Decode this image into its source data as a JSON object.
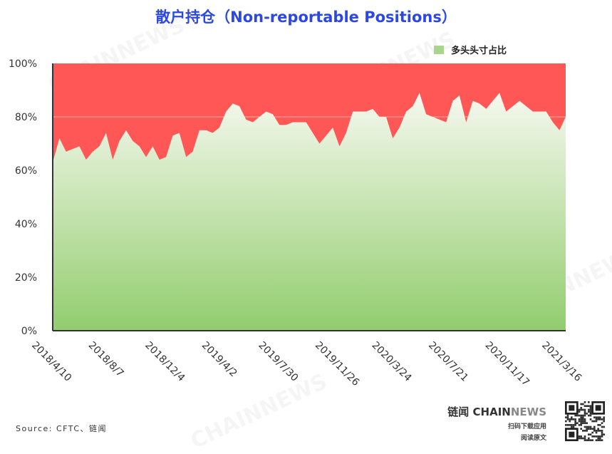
{
  "title": "散户持仓（Non-reportable Positions）",
  "legend": {
    "label": "多头头寸占比",
    "swatch_color": "#a9d58c"
  },
  "source": "Source: CFTC、链闻",
  "brand": {
    "name_cn": "链闻",
    "name_en_1": "CHAIN",
    "name_en_2": "NEWS",
    "line2": "扫码下载应用",
    "line3": "阅读原文",
    "watermark": "CHAINNEWS"
  },
  "colors": {
    "title": "#2b47e4",
    "short_area": "#ff5656",
    "long_area_top": "#f6f8ef",
    "long_area_bottom": "#92cd6e"
  },
  "chart_data": {
    "type": "area",
    "stacked_percent": true,
    "title": "散户持仓（Non-reportable Positions）",
    "ylim": [
      0,
      100
    ],
    "y_ticks": [
      "0%",
      "20%",
      "40%",
      "60%",
      "80%",
      "100%"
    ],
    "x_ticks": [
      "2018/4/10",
      "2018/8/7",
      "2018/12/4",
      "2019/4/2",
      "2019/7/30",
      "2019/11/26",
      "2020/3/24",
      "2020/7/21",
      "2020/11/17",
      "2021/3/16"
    ],
    "grid": "horizontal at 80%",
    "legend_position": "top-right",
    "series": [
      {
        "name": "多头头寸占比",
        "color": "#a9d58c",
        "points": [
          [
            "2018/4/10",
            63
          ],
          [
            "2018/4/24",
            72
          ],
          [
            "2018/5/8",
            67
          ],
          [
            "2018/5/22",
            68
          ],
          [
            "2018/6/5",
            69
          ],
          [
            "2018/6/19",
            64
          ],
          [
            "2018/7/3",
            67
          ],
          [
            "2018/7/17",
            69
          ],
          [
            "2018/7/31",
            74
          ],
          [
            "2018/8/14",
            64
          ],
          [
            "2018/8/28",
            71
          ],
          [
            "2018/9/11",
            75
          ],
          [
            "2018/9/25",
            71
          ],
          [
            "2018/10/9",
            69
          ],
          [
            "2018/10/23",
            65
          ],
          [
            "2018/11/6",
            69
          ],
          [
            "2018/11/20",
            64
          ],
          [
            "2018/12/4",
            65
          ],
          [
            "2018/12/18",
            73
          ],
          [
            "2019/1/1",
            74
          ],
          [
            "2019/1/15",
            65
          ],
          [
            "2019/1/29",
            67
          ],
          [
            "2019/2/12",
            75
          ],
          [
            "2019/2/26",
            75
          ],
          [
            "2019/3/12",
            74
          ],
          [
            "2019/3/26",
            76
          ],
          [
            "2019/4/9",
            82
          ],
          [
            "2019/4/23",
            85
          ],
          [
            "2019/5/7",
            84
          ],
          [
            "2019/5/21",
            79
          ],
          [
            "2019/6/4",
            78
          ],
          [
            "2019/6/18",
            80
          ],
          [
            "2019/7/2",
            82
          ],
          [
            "2019/7/16",
            81
          ],
          [
            "2019/7/30",
            77
          ],
          [
            "2019/8/13",
            77
          ],
          [
            "2019/8/27",
            78
          ],
          [
            "2019/9/10",
            78
          ],
          [
            "2019/9/24",
            78
          ],
          [
            "2019/10/8",
            74
          ],
          [
            "2019/10/22",
            70
          ],
          [
            "2019/11/5",
            73
          ],
          [
            "2019/11/19",
            76
          ],
          [
            "2019/12/3",
            69
          ],
          [
            "2019/12/17",
            74
          ],
          [
            "2019/12/31",
            82
          ],
          [
            "2020/1/14",
            82
          ],
          [
            "2020/1/28",
            82
          ],
          [
            "2020/2/11",
            83
          ],
          [
            "2020/2/25",
            80
          ],
          [
            "2020/3/10",
            80
          ],
          [
            "2020/3/24",
            72
          ],
          [
            "2020/4/7",
            76
          ],
          [
            "2020/4/21",
            82
          ],
          [
            "2020/5/5",
            84
          ],
          [
            "2020/5/19",
            89
          ],
          [
            "2020/6/2",
            81
          ],
          [
            "2020/6/16",
            80
          ],
          [
            "2020/6/30",
            79
          ],
          [
            "2020/7/14",
            78
          ],
          [
            "2020/7/28",
            86
          ],
          [
            "2020/8/11",
            88
          ],
          [
            "2020/8/25",
            78
          ],
          [
            "2020/9/8",
            86
          ],
          [
            "2020/9/22",
            85
          ],
          [
            "2020/10/6",
            83
          ],
          [
            "2020/10/20",
            86
          ],
          [
            "2020/11/3",
            89
          ],
          [
            "2020/11/17",
            82
          ],
          [
            "2020/12/1",
            84
          ],
          [
            "2020/12/15",
            86
          ],
          [
            "2020/12/29",
            84
          ],
          [
            "2021/1/12",
            82
          ],
          [
            "2021/1/26",
            82
          ],
          [
            "2021/2/9",
            82
          ],
          [
            "2021/2/23",
            78
          ],
          [
            "2021/3/9",
            75
          ],
          [
            "2021/3/23",
            80
          ]
        ]
      }
    ]
  }
}
